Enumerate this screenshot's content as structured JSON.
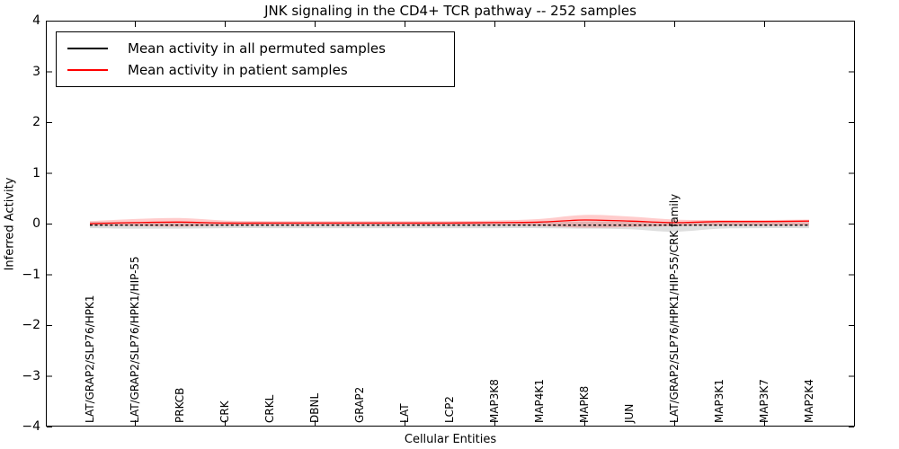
{
  "title": "JNK signaling in the CD4+ TCR pathway -- 252 samples",
  "legend": {
    "items": [
      {
        "label": "Mean activity in all permuted samples",
        "color": "#000000"
      },
      {
        "label": "Mean activity in patient samples",
        "color": "#ff0000"
      }
    ]
  },
  "chart_data": {
    "type": "line",
    "title": "JNK signaling in the CD4+ TCR pathway -- 252 samples",
    "xlabel": "Cellular Entities",
    "ylabel": "Inferred Activity",
    "ylim": [
      -4,
      4
    ],
    "yticks": [
      -4,
      -3,
      -2,
      -1,
      0,
      1,
      2,
      3,
      4
    ],
    "ytick_labels": [
      "−4",
      "−3",
      "−2",
      "−1",
      "0",
      "1",
      "2",
      "3",
      "4"
    ],
    "grid": false,
    "legend_position": "upper left",
    "categories": [
      "LAT/GRAP2/SLP76/HPK1",
      "LAT/GRAP2/SLP76/HPK1/HIP-55",
      "PRKCB",
      "CRK",
      "CRKL",
      "DBNL",
      "GRAP2",
      "LAT",
      "LCP2",
      "MAP3K8",
      "MAP4K1",
      "MAPK8",
      "JUN",
      "LAT/GRAP2/SLP76/HPK1/HIP-55/CRK family",
      "MAP3K1",
      "MAP3K7",
      "MAP2K4"
    ],
    "axis_tick_positions": [
      2,
      4,
      6,
      8,
      10,
      12,
      14,
      16
    ],
    "series": [
      {
        "name": "Mean activity in all permuted samples",
        "color": "#000000",
        "style": "dashed",
        "values": [
          -0.03,
          -0.03,
          -0.03,
          -0.03,
          -0.03,
          -0.03,
          -0.03,
          -0.03,
          -0.03,
          -0.03,
          -0.03,
          -0.03,
          -0.03,
          -0.03,
          -0.03,
          -0.03,
          -0.03
        ]
      },
      {
        "name": "Mean activity in patient samples",
        "color": "#ff0000",
        "style": "solid",
        "values": [
          0.0,
          0.02,
          0.03,
          0.01,
          0.01,
          0.01,
          0.01,
          0.01,
          0.01,
          0.02,
          0.03,
          0.07,
          0.05,
          0.02,
          0.04,
          0.04,
          0.05
        ]
      }
    ],
    "bands": [
      {
        "name": "permuted-samples-spread",
        "color": "rgba(0,0,0,0.13)",
        "upper": [
          0.03,
          0.03,
          0.03,
          0.03,
          0.03,
          0.03,
          0.03,
          0.03,
          0.03,
          0.03,
          0.03,
          0.04,
          0.04,
          0.03,
          0.03,
          0.03,
          0.03
        ],
        "lower": [
          -0.09,
          -0.1,
          -0.1,
          -0.09,
          -0.09,
          -0.09,
          -0.09,
          -0.09,
          -0.09,
          -0.09,
          -0.09,
          -0.1,
          -0.11,
          -0.16,
          -0.1,
          -0.09,
          -0.09
        ]
      },
      {
        "name": "patient-samples-spread",
        "color": "rgba(255,0,0,0.20)",
        "upper": [
          0.05,
          0.09,
          0.11,
          0.06,
          0.05,
          0.05,
          0.05,
          0.05,
          0.05,
          0.06,
          0.09,
          0.17,
          0.14,
          0.08,
          0.07,
          0.07,
          0.08
        ],
        "lower": [
          -0.04,
          -0.05,
          -0.06,
          -0.04,
          -0.04,
          -0.04,
          -0.04,
          -0.04,
          -0.04,
          -0.04,
          -0.05,
          -0.08,
          -0.07,
          -0.05,
          -0.04,
          -0.04,
          -0.04
        ]
      }
    ]
  }
}
